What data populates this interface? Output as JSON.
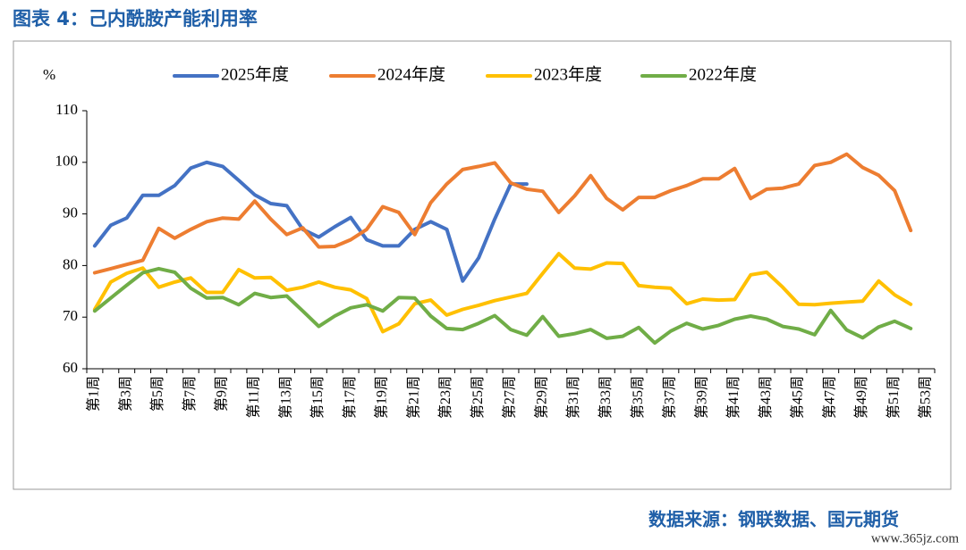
{
  "chart_data": {
    "type": "line",
    "title": "图表 4：己内酰胺产能利用率",
    "y_label": "%",
    "source": "数据来源：钢联数据、国元期货",
    "watermark": "www.365jz.com",
    "categories": [
      "第1周",
      null,
      "第3周",
      null,
      "第5周",
      null,
      "第7周",
      null,
      "第9周",
      null,
      "第11周",
      null,
      "第13周",
      null,
      "第15周",
      null,
      "第17周",
      null,
      "第19周",
      null,
      "第21周",
      null,
      "第23周",
      null,
      "第25周",
      null,
      "第27周",
      null,
      "第29周",
      null,
      "第31周",
      null,
      "第33周",
      null,
      "第35周",
      null,
      "第37周",
      null,
      "第39周",
      null,
      "第41周",
      null,
      "第43周",
      null,
      "第45周",
      null,
      "第47周",
      null,
      "第49周",
      null,
      "第51周",
      null,
      "第53周"
    ],
    "series": [
      {
        "name": "2025年度",
        "color": "#4472c4",
        "values": [
          83.8,
          87.8,
          89.2,
          93.6,
          93.6,
          95.5,
          98.9,
          100,
          99.2,
          96.5,
          93.7,
          92,
          91.6,
          87,
          85.5,
          87.5,
          89.3,
          85,
          83.8,
          83.8,
          87,
          88.5,
          87,
          77,
          81.5,
          89,
          95.8,
          95.8,
          null,
          null,
          null,
          null,
          null,
          null,
          null,
          null,
          null,
          null,
          null,
          null,
          null,
          null,
          null,
          null,
          null,
          null,
          null,
          null,
          null,
          null,
          null,
          null,
          null
        ]
      },
      {
        "name": "2024年度",
        "color": "#ed7d31",
        "values": [
          78.6,
          79.4,
          80.2,
          81,
          87.2,
          85.3,
          87,
          88.5,
          89.2,
          89,
          92.5,
          89,
          86,
          87.3,
          83.6,
          83.7,
          85,
          87,
          91.4,
          90.3,
          86,
          92.2,
          95.8,
          98.6,
          99.2,
          99.9,
          96,
          94.8,
          94.4,
          90.3,
          93.5,
          97.4,
          93,
          90.8,
          93.2,
          93.2,
          94.5,
          95.5,
          96.8,
          96.8,
          98.8,
          93,
          94.8,
          95,
          95.8,
          99.4,
          100,
          101.6,
          99,
          97.5,
          94.5,
          86.8,
          null
        ]
      },
      {
        "name": "2023年度",
        "color": "#ffc000",
        "values": [
          71.5,
          76.8,
          78.5,
          79.5,
          75.8,
          76.8,
          77.6,
          74.8,
          74.8,
          79.2,
          77.6,
          77.7,
          75.2,
          75.8,
          76.8,
          75.8,
          75.3,
          73.6,
          67.2,
          68.7,
          72.6,
          73.3,
          70.4,
          71.5,
          72.3,
          73.2,
          73.9,
          74.6,
          78.5,
          82.3,
          79.5,
          79.3,
          80.5,
          80.4,
          76.1,
          75.8,
          75.6,
          72.6,
          73.5,
          73.3,
          73.4,
          78.2,
          78.7,
          75.8,
          72.5,
          72.4,
          72.7,
          72.9,
          73.1,
          77,
          74.3,
          72.5,
          null
        ]
      },
      {
        "name": "2022年度",
        "color": "#70ad47",
        "values": [
          71.2,
          73.7,
          76.2,
          78.6,
          79.4,
          78.7,
          75.6,
          73.7,
          73.8,
          72.4,
          74.6,
          73.8,
          74.1,
          71.2,
          68.2,
          70.2,
          71.8,
          72.4,
          71.2,
          73.8,
          73.7,
          70.2,
          67.8,
          67.6,
          68.8,
          70.3,
          67.6,
          66.5,
          70.1,
          66.3,
          66.8,
          67.6,
          65.9,
          66.3,
          68,
          65,
          67.3,
          68.8,
          67.7,
          68.4,
          69.6,
          70.2,
          69.6,
          68.2,
          67.7,
          66.6,
          71.3,
          67.5,
          66,
          68.1,
          69.2,
          67.8,
          null
        ]
      }
    ],
    "ylim": [
      60,
      110
    ],
    "yticks": [
      60,
      70,
      80,
      90,
      100,
      110
    ],
    "grid": false,
    "legend": "top"
  }
}
